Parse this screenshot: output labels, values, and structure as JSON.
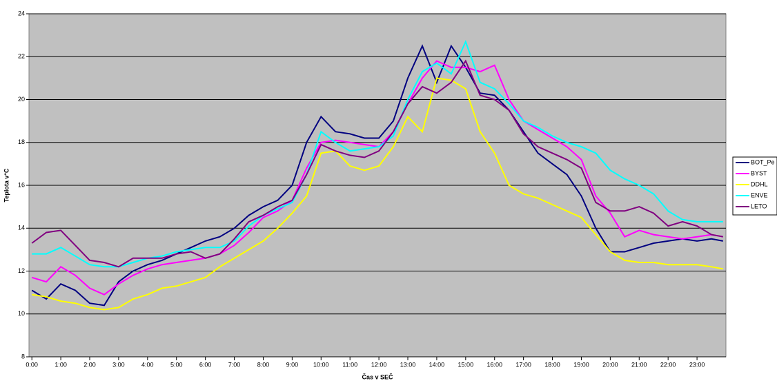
{
  "chart_data": {
    "type": "line",
    "y_label": "Teplota v°C",
    "x_label": "Čas v SEČ",
    "x": [
      0,
      0.5,
      1,
      1.5,
      2,
      2.5,
      3,
      3.5,
      4,
      4.5,
      5,
      5.5,
      6,
      6.5,
      7,
      7.5,
      8,
      8.5,
      9,
      9.5,
      10,
      10.5,
      11,
      11.5,
      12,
      12.5,
      13,
      13.5,
      14,
      14.5,
      15,
      15.5,
      16,
      16.5,
      17,
      17.5,
      18,
      18.5,
      19,
      19.5,
      20,
      20.5,
      21,
      21.5,
      22,
      22.5,
      23,
      23.5,
      23.9
    ],
    "series": [
      {
        "name": "BOT_Pe",
        "color": "#000080",
        "values": [
          11.1,
          10.7,
          11.4,
          11.1,
          10.5,
          10.4,
          11.5,
          12.0,
          12.3,
          12.5,
          12.8,
          13.1,
          13.4,
          13.6,
          14.0,
          14.6,
          15.0,
          15.3,
          16.0,
          18.0,
          19.2,
          18.5,
          18.4,
          18.2,
          18.2,
          19.0,
          21.0,
          22.5,
          20.8,
          22.5,
          21.5,
          20.3,
          20.2,
          19.5,
          18.5,
          17.5,
          17.0,
          16.5,
          15.5,
          14.0,
          12.9,
          12.9,
          13.1,
          13.3,
          13.4,
          13.5,
          13.4,
          13.5,
          13.4
        ]
      },
      {
        "name": "BYST",
        "color": "#ff00ff",
        "values": [
          11.7,
          11.5,
          12.2,
          11.8,
          11.2,
          10.9,
          11.4,
          11.8,
          12.1,
          12.3,
          12.4,
          12.5,
          12.6,
          12.8,
          13.2,
          13.8,
          14.5,
          14.8,
          15.3,
          16.8,
          18.0,
          18.1,
          18.0,
          17.9,
          17.8,
          18.5,
          19.8,
          21.0,
          21.8,
          21.5,
          21.5,
          21.3,
          21.6,
          20.0,
          19.0,
          18.6,
          18.2,
          17.8,
          17.2,
          15.5,
          14.7,
          13.6,
          13.9,
          13.7,
          13.6,
          13.5,
          13.6,
          13.7,
          13.6
        ]
      },
      {
        "name": "DDHL",
        "color": "#ffff00",
        "values": [
          10.9,
          10.8,
          10.6,
          10.5,
          10.3,
          10.2,
          10.3,
          10.7,
          10.9,
          11.2,
          11.3,
          11.5,
          11.7,
          12.2,
          12.6,
          13.0,
          13.4,
          14.0,
          14.7,
          15.5,
          17.5,
          17.6,
          16.9,
          16.7,
          16.9,
          17.8,
          19.2,
          18.5,
          21.0,
          20.9,
          20.5,
          18.5,
          17.5,
          16.0,
          15.6,
          15.4,
          15.1,
          14.8,
          14.5,
          13.7,
          12.9,
          12.5,
          12.4,
          12.4,
          12.3,
          12.3,
          12.3,
          12.2,
          12.1
        ]
      },
      {
        "name": "ENVE",
        "color": "#00ffff",
        "values": [
          12.8,
          12.8,
          13.1,
          12.7,
          12.3,
          12.2,
          12.2,
          12.4,
          12.6,
          12.7,
          12.9,
          13.0,
          13.1,
          13.1,
          13.4,
          14.1,
          14.6,
          14.9,
          15.2,
          16.5,
          18.5,
          18.0,
          17.6,
          17.7,
          17.8,
          18.3,
          20.0,
          21.3,
          21.7,
          21.2,
          22.7,
          20.8,
          20.5,
          19.8,
          19.0,
          18.7,
          18.3,
          18.0,
          17.8,
          17.5,
          16.7,
          16.3,
          16.0,
          15.6,
          14.8,
          14.4,
          14.3,
          14.3,
          14.3
        ]
      },
      {
        "name": "LETO",
        "color": "#800080",
        "values": [
          13.3,
          13.8,
          13.9,
          13.2,
          12.5,
          12.4,
          12.2,
          12.6,
          12.6,
          12.6,
          12.8,
          12.9,
          12.6,
          12.8,
          13.5,
          14.3,
          14.6,
          15.0,
          15.3,
          16.5,
          17.9,
          17.6,
          17.4,
          17.3,
          17.6,
          18.5,
          19.8,
          20.6,
          20.3,
          20.8,
          21.8,
          20.2,
          20.0,
          19.5,
          18.4,
          17.8,
          17.5,
          17.2,
          16.8,
          15.2,
          14.8,
          14.8,
          15.0,
          14.7,
          14.1,
          14.3,
          14.1,
          13.7,
          13.6
        ]
      }
    ],
    "xlim": [
      -0.1,
      24.0
    ],
    "xticks": [
      {
        "value": 0,
        "label": "0:00"
      },
      {
        "value": 1,
        "label": "1:00"
      },
      {
        "value": 2,
        "label": "2:00"
      },
      {
        "value": 3,
        "label": "3:00"
      },
      {
        "value": 4,
        "label": "4:00"
      },
      {
        "value": 5,
        "label": "5:00"
      },
      {
        "value": 6,
        "label": "6:00"
      },
      {
        "value": 7,
        "label": "7:00"
      },
      {
        "value": 8,
        "label": "8:00"
      },
      {
        "value": 9,
        "label": "9:00"
      },
      {
        "value": 10,
        "label": "10:00"
      },
      {
        "value": 11,
        "label": "11:00"
      },
      {
        "value": 12,
        "label": "12:00"
      },
      {
        "value": 13,
        "label": "13:00"
      },
      {
        "value": 14,
        "label": "14:00"
      },
      {
        "value": 15,
        "label": "15:00"
      },
      {
        "value": 16,
        "label": "16:00"
      },
      {
        "value": 17,
        "label": "17:00"
      },
      {
        "value": 18,
        "label": "18:00"
      },
      {
        "value": 19,
        "label": "19:00"
      },
      {
        "value": 20,
        "label": "20:00"
      },
      {
        "value": 21,
        "label": "21:00"
      },
      {
        "value": 22,
        "label": "22:00"
      },
      {
        "value": 23,
        "label": "23:00"
      }
    ],
    "ylim": [
      8,
      24
    ],
    "yticks": [
      8,
      10,
      12,
      14,
      16,
      18,
      20,
      22,
      24
    ],
    "grid": true,
    "legend": "right"
  }
}
